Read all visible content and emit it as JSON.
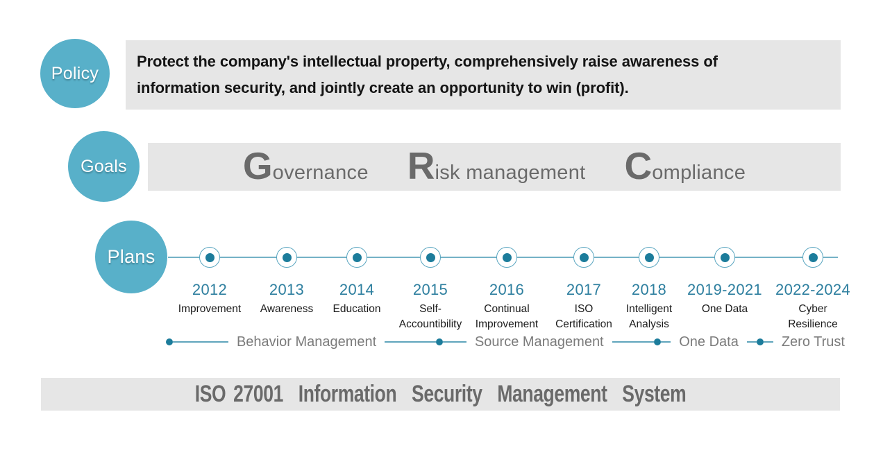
{
  "policy": {
    "label": "Policy",
    "text": "Protect the company's intellectual property, comprehensively raise awareness of\ninformation security, and jointly create an opportunity to win (profit)."
  },
  "goals": {
    "label": "Goals",
    "items": [
      {
        "initial": "G",
        "rest": "overnance"
      },
      {
        "initial": "R",
        "rest": "isk management"
      },
      {
        "initial": "C",
        "rest": "ompliance"
      }
    ]
  },
  "plans": {
    "label": "Plans",
    "milestones": [
      {
        "year": "2012",
        "label": "Improvement"
      },
      {
        "year": "2013",
        "label": "Awareness"
      },
      {
        "year": "2014",
        "label": "Education"
      },
      {
        "year": "2015",
        "label": "Self-\nAccountibility"
      },
      {
        "year": "2016",
        "label": "Continual\nImprovement"
      },
      {
        "year": "2017",
        "label": "ISO\nCertification"
      },
      {
        "year": "2018",
        "label": "Intelligent\nAnalysis"
      },
      {
        "year": "2019-2021",
        "label": "One Data"
      },
      {
        "year": "2022-2024",
        "label": "Cyber\nResilience"
      }
    ],
    "phases": [
      "Behavior Management",
      "Source Management",
      "One Data",
      "Zero Trust"
    ]
  },
  "footer": {
    "text": "ISO 27001  Information  Security  Management  System"
  },
  "colors": {
    "bubble_teal": "#58b0c9",
    "dot_teal": "#1c7c9b",
    "year_teal": "#2e7f9f",
    "panel_gray": "#e6e6e6",
    "text_gray": "#6a6a6a"
  }
}
